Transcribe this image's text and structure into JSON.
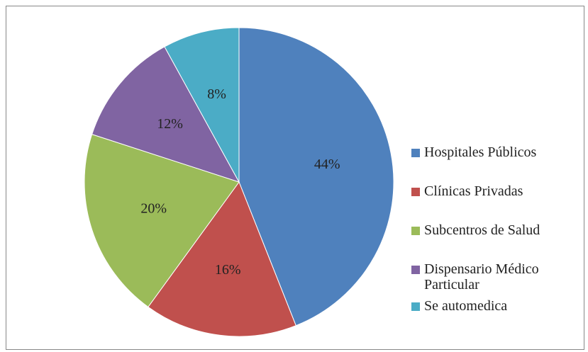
{
  "chart_data": {
    "type": "pie",
    "categories": [
      "Hospitales Públicos",
      "Clínicas Privadas",
      "Subcentros de Salud",
      "Dispensario Médico Particular",
      "Se automedica"
    ],
    "values": [
      44,
      16,
      20,
      12,
      8
    ],
    "value_labels": [
      "44%",
      "16%",
      "20%",
      "12%",
      "8%"
    ],
    "colors": [
      "#4f81bd",
      "#c0504d",
      "#9bbb59",
      "#8064a2",
      "#4bacc6"
    ],
    "legend": "right"
  }
}
